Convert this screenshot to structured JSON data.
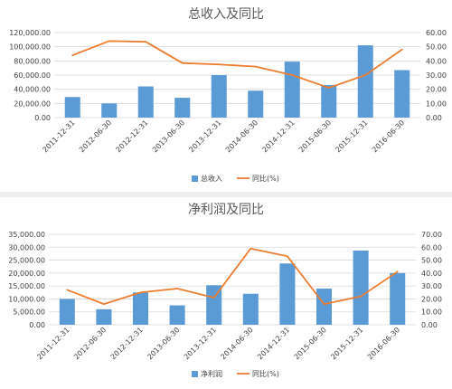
{
  "chart_data": [
    {
      "type": "bar",
      "title": "总收入及同比",
      "categories": [
        "2011-12-31",
        "2012-06-30",
        "2012-12-31",
        "2013-06-30",
        "2013-12-31",
        "2014-06-30",
        "2014-12-31",
        "2015-06-30",
        "2015-12-31",
        "2016-06-30"
      ],
      "series": [
        {
          "name": "总收入",
          "type": "bar",
          "axis": "left",
          "color": "#5b9bd5",
          "values": [
            29000,
            20000,
            44000,
            28000,
            60000,
            38000,
            79000,
            46000,
            102000,
            67000
          ]
        },
        {
          "name": "同比(%)",
          "type": "line",
          "axis": "right",
          "color": "#ed7d31",
          "values": [
            44,
            54,
            53.5,
            38.5,
            37.5,
            36,
            30,
            21,
            30,
            48
          ]
        }
      ],
      "ylim": [
        0,
        120000
      ],
      "y_ticks": [
        "0.00",
        "20,000.00",
        "40,000.00",
        "60,000.00",
        "80,000.00",
        "100,000.00",
        "120,000.00"
      ],
      "y2lim": [
        0,
        60
      ],
      "y2_ticks": [
        "0.00",
        "10.00",
        "20.00",
        "30.00",
        "40.00",
        "50.00",
        "60.00"
      ],
      "grid": true,
      "legend": "bottom"
    },
    {
      "type": "bar",
      "title": "净利润及同比",
      "categories": [
        "2011-12-31",
        "2012-06-30",
        "2012-12-31",
        "2013-06-30",
        "2013-12-31",
        "2014-06-30",
        "2014-12-31",
        "2015-06-30",
        "2015-12-31",
        "2016-06-30"
      ],
      "series": [
        {
          "name": "净利润",
          "type": "bar",
          "axis": "left",
          "color": "#5b9bd5",
          "values": [
            10000,
            6000,
            12500,
            7500,
            15300,
            12000,
            23700,
            14000,
            28700,
            20000
          ]
        },
        {
          "name": "同比(%)",
          "type": "line",
          "axis": "right",
          "color": "#ed7d31",
          "values": [
            27,
            16,
            25,
            28,
            21,
            59,
            53,
            16,
            22,
            41
          ]
        }
      ],
      "ylim": [
        0,
        35000
      ],
      "y_ticks": [
        "0.00",
        "5,000.00",
        "10,000.00",
        "15,000.00",
        "20,000.00",
        "25,000.00",
        "30,000.00",
        "35,000.00"
      ],
      "y2lim": [
        0,
        70
      ],
      "y2_ticks": [
        "0.00",
        "10.00",
        "20.00",
        "30.00",
        "40.00",
        "50.00",
        "60.00",
        "70.00"
      ],
      "grid": true,
      "legend": "bottom"
    }
  ]
}
